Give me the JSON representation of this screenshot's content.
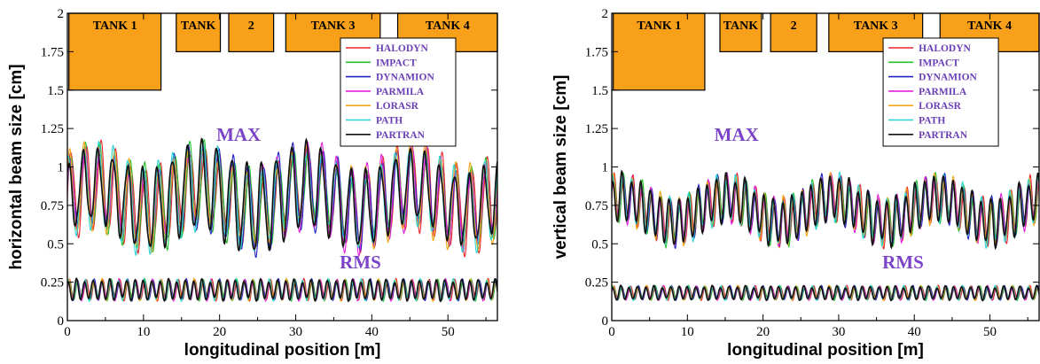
{
  "chart_data": [
    {
      "type": "line",
      "ylabel": "horizontal beam size  [cm]",
      "xlabel": "longitudinal position  [m]",
      "xlim": [
        0,
        56.5
      ],
      "ylim": [
        0,
        2
      ],
      "xticks": [
        0,
        10,
        20,
        30,
        40,
        50
      ],
      "xtick_labels": [
        "0",
        "10",
        "20",
        "30",
        "40",
        "50"
      ],
      "yticks": [
        0,
        0.25,
        0.5,
        0.75,
        1,
        1.25,
        1.5,
        1.75,
        2
      ],
      "ytick_labels": [
        "0",
        "0.25",
        "0.5",
        "0.75",
        "1",
        "1.25",
        "1.5",
        "1.75",
        "2"
      ],
      "tanks": [
        {
          "label": "TANK 1",
          "x0": 0.2,
          "x1": 12.3,
          "y0": 1.5
        },
        {
          "label": "TANK",
          "x0": 14.3,
          "x1": 20.1,
          "y0": 1.75
        },
        {
          "label": "2",
          "x0": 21.2,
          "x1": 27.1,
          "y0": 1.75
        },
        {
          "label": "TANK 3",
          "x0": 28.7,
          "x1": 41.1,
          "y0": 1.75
        },
        {
          "label": "TANK 4",
          "x0": 43.4,
          "x1": 56.5,
          "y0": 1.75
        }
      ],
      "annotations": [
        {
          "text": "MAX",
          "x": 22.5,
          "y": 1.17
        },
        {
          "text": "RMS",
          "x": 38.5,
          "y": 0.34
        }
      ],
      "envelope": {
        "max": {
          "base": 0.8,
          "amplitude": 0.25,
          "period": 1.95
        },
        "rms": {
          "base": 0.2,
          "amplitude": 0.06,
          "period": 1.1
        }
      },
      "series": [
        {
          "name": "HALODYN",
          "color": "#e8262b"
        },
        {
          "name": "IMPACT",
          "color": "#22c02c"
        },
        {
          "name": "DYNAMION",
          "color": "#2323c4"
        },
        {
          "name": "PARMILA",
          "color": "#e021d9"
        },
        {
          "name": "LORASR",
          "color": "#f0a818"
        },
        {
          "name": "PATH",
          "color": "#2ad4d4"
        },
        {
          "name": "PARTRAN",
          "color": "#111111"
        }
      ]
    },
    {
      "type": "line",
      "ylabel": "vertical beam size  [cm]",
      "xlabel": "longitudinal position  [m]",
      "xlim": [
        0,
        56.5
      ],
      "ylim": [
        0,
        2
      ],
      "xticks": [
        0,
        10,
        20,
        30,
        40,
        50
      ],
      "xtick_labels": [
        "0",
        "10",
        "20",
        "30",
        "40",
        "50"
      ],
      "yticks": [
        0,
        0.25,
        0.5,
        0.75,
        1,
        1.25,
        1.5,
        1.75,
        2
      ],
      "ytick_labels": [
        "0",
        "0.25",
        "0.5",
        "0.75",
        "1",
        "1.25",
        "1.5",
        "1.75",
        "2"
      ],
      "tanks": [
        {
          "label": "TANK 1",
          "x0": 0.2,
          "x1": 12.3,
          "y0": 1.5
        },
        {
          "label": "TANK",
          "x0": 14.3,
          "x1": 19.8,
          "y0": 1.75
        },
        {
          "label": "2",
          "x0": 21.0,
          "x1": 27.1,
          "y0": 1.75
        },
        {
          "label": "TANK 3",
          "x0": 28.7,
          "x1": 41.1,
          "y0": 1.75
        },
        {
          "label": "TANK 4",
          "x0": 43.4,
          "x1": 56.5,
          "y0": 1.75
        }
      ],
      "annotations": [
        {
          "text": "MAX",
          "x": 16.5,
          "y": 1.17
        },
        {
          "text": "RMS",
          "x": 38.5,
          "y": 0.34
        }
      ],
      "envelope": {
        "max": {
          "base": 0.72,
          "amplitude": 0.14,
          "period": 1.25
        },
        "rms": {
          "base": 0.18,
          "amplitude": 0.04,
          "period": 1.1
        }
      },
      "series": [
        {
          "name": "HALODYN",
          "color": "#e8262b"
        },
        {
          "name": "IMPACT",
          "color": "#22c02c"
        },
        {
          "name": "DYNAMION",
          "color": "#2323c4"
        },
        {
          "name": "PARMILA",
          "color": "#e021d9"
        },
        {
          "name": "LORASR",
          "color": "#f0a818"
        },
        {
          "name": "PATH",
          "color": "#2ad4d4"
        },
        {
          "name": "PARTRAN",
          "color": "#111111"
        }
      ]
    }
  ]
}
